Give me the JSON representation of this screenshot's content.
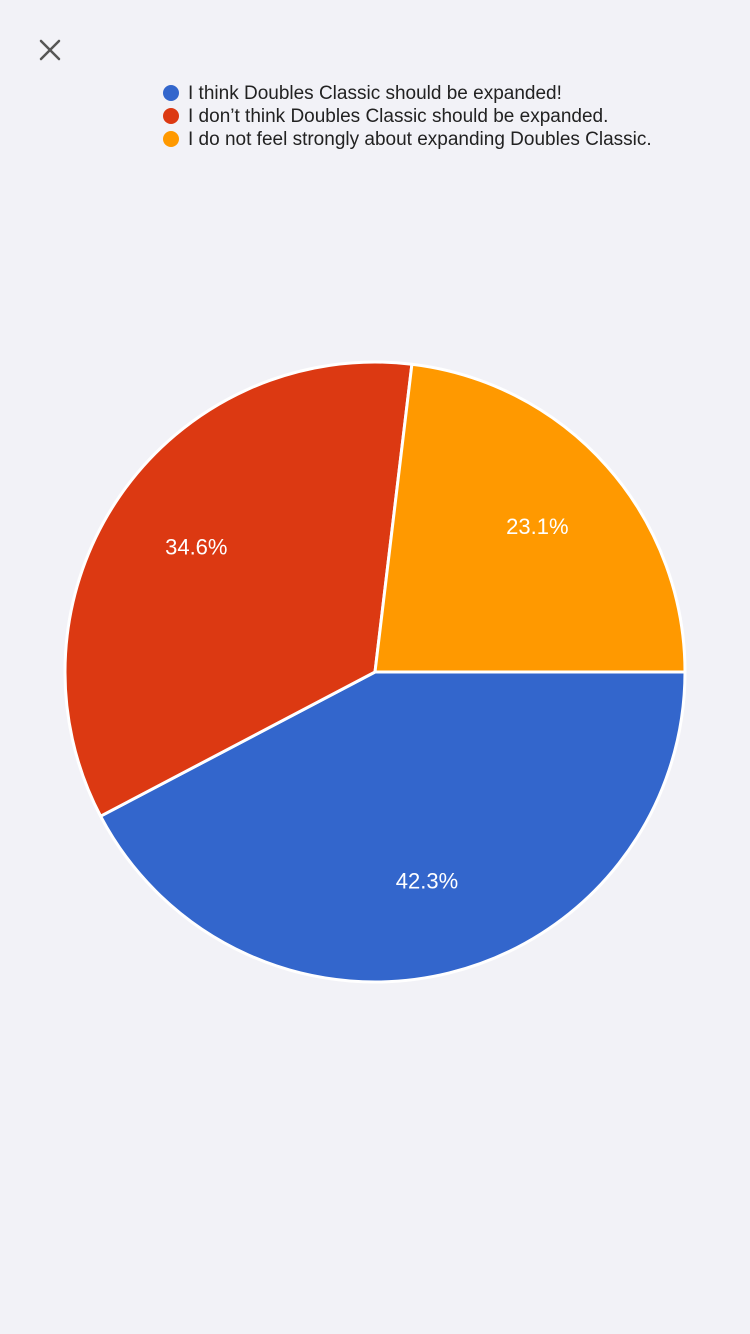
{
  "chart_data": {
    "type": "pie",
    "categories": [
      "I think Doubles Classic should be expanded!",
      "I don’t think Doubles Classic should be expanded.",
      "I do not feel strongly about expanding Doubles Classic."
    ],
    "values": [
      42.3,
      34.6,
      23.1
    ],
    "value_labels": [
      "42.3%",
      "34.6%",
      "23.1%"
    ],
    "colors": [
      "#3366cc",
      "#dc3912",
      "#ff9900"
    ],
    "legend": "top"
  }
}
